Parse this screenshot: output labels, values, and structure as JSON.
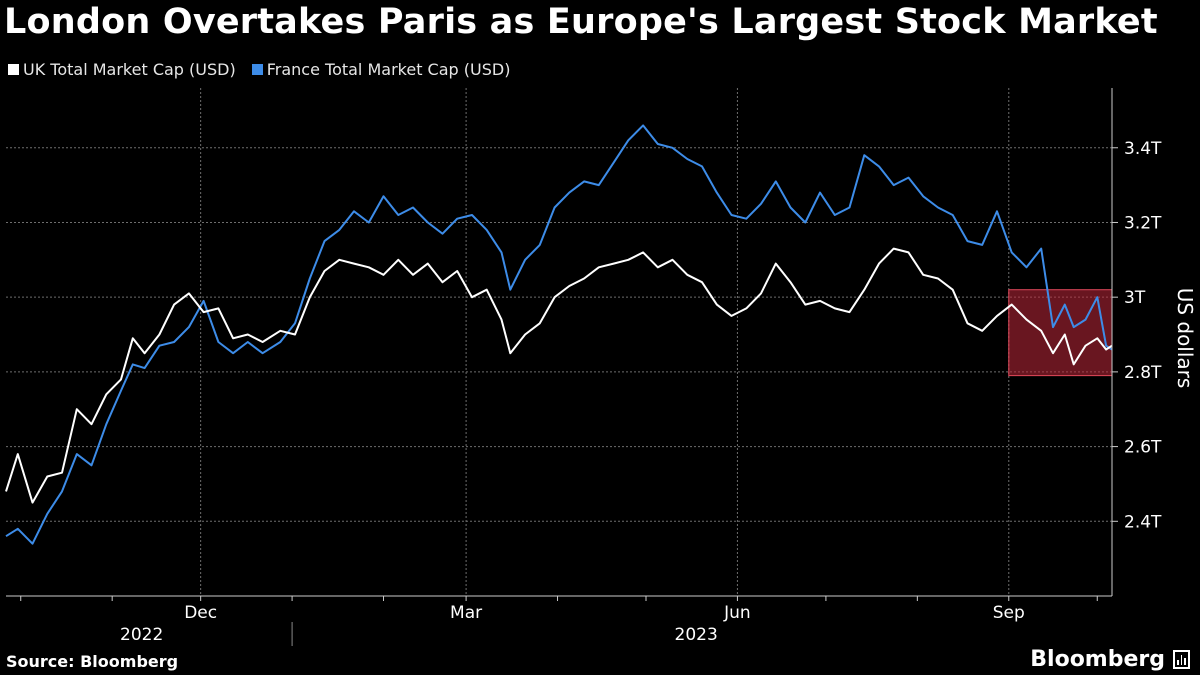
{
  "title": "London Overtakes Paris as Europe's Largest Stock Market",
  "source": "Source: Bloomberg",
  "brand": "Bloomberg",
  "colors": {
    "uk": "#ffffff",
    "france": "#3d8ce8",
    "highlight": "#c0283a"
  },
  "chart_data": {
    "type": "line",
    "title": "London Overtakes Paris as Europe's Largest Stock Market",
    "ylabel": "US dollars",
    "ylim": [
      2.2,
      3.56
    ],
    "y_ticks": [
      "2.4T",
      "2.6T",
      "2.8T",
      "3T",
      "3.2T",
      "3.4T"
    ],
    "y_tick_values": [
      2.4,
      2.6,
      2.8,
      3.0,
      3.2,
      3.4
    ],
    "x_range": [
      "2022-09-26",
      "2023-10-06"
    ],
    "x_ticks": [
      {
        "label": "Dec",
        "date": "2022-12-01"
      },
      {
        "label": "Mar",
        "date": "2023-03-01"
      },
      {
        "label": "Jun",
        "date": "2023-06-01"
      },
      {
        "label": "Sep",
        "date": "2023-09-01"
      }
    ],
    "minor_ticks": [
      "2022-10-01",
      "2022-11-01",
      "2022-12-01",
      "2023-01-01",
      "2023-02-01",
      "2023-03-01",
      "2023-04-01",
      "2023-05-01",
      "2023-06-01",
      "2023-07-01",
      "2023-08-01",
      "2023-09-01",
      "2023-10-01"
    ],
    "year_labels": [
      {
        "label": "2022",
        "date": "2022-11-11"
      },
      {
        "label": "2023",
        "date": "2023-05-18"
      }
    ],
    "year_divider": "2023-01-01",
    "grid": true,
    "legend_position": "top-left",
    "highlight": {
      "x_start": "2023-09-01",
      "x_end": "2023-10-06",
      "y_start": 2.79,
      "y_end": 3.02
    },
    "series": [
      {
        "name": "UK Total Market Cap (USD)",
        "color": "#ffffff",
        "points": [
          [
            "2022-09-26",
            2.48
          ],
          [
            "2022-09-30",
            2.58
          ],
          [
            "2022-10-05",
            2.45
          ],
          [
            "2022-10-10",
            2.52
          ],
          [
            "2022-10-15",
            2.53
          ],
          [
            "2022-10-20",
            2.7
          ],
          [
            "2022-10-25",
            2.66
          ],
          [
            "2022-10-30",
            2.74
          ],
          [
            "2022-11-04",
            2.78
          ],
          [
            "2022-11-08",
            2.89
          ],
          [
            "2022-11-12",
            2.85
          ],
          [
            "2022-11-17",
            2.9
          ],
          [
            "2022-11-22",
            2.98
          ],
          [
            "2022-11-27",
            3.01
          ],
          [
            "2022-12-02",
            2.96
          ],
          [
            "2022-12-07",
            2.97
          ],
          [
            "2022-12-12",
            2.89
          ],
          [
            "2022-12-17",
            2.9
          ],
          [
            "2022-12-22",
            2.88
          ],
          [
            "2022-12-28",
            2.91
          ],
          [
            "2023-01-02",
            2.9
          ],
          [
            "2023-01-07",
            3.0
          ],
          [
            "2023-01-12",
            3.07
          ],
          [
            "2023-01-17",
            3.1
          ],
          [
            "2023-01-22",
            3.09
          ],
          [
            "2023-01-27",
            3.08
          ],
          [
            "2023-02-01",
            3.06
          ],
          [
            "2023-02-06",
            3.1
          ],
          [
            "2023-02-11",
            3.06
          ],
          [
            "2023-02-16",
            3.09
          ],
          [
            "2023-02-21",
            3.04
          ],
          [
            "2023-02-26",
            3.07
          ],
          [
            "2023-03-03",
            3.0
          ],
          [
            "2023-03-08",
            3.02
          ],
          [
            "2023-03-13",
            2.94
          ],
          [
            "2023-03-16",
            2.85
          ],
          [
            "2023-03-21",
            2.9
          ],
          [
            "2023-03-26",
            2.93
          ],
          [
            "2023-03-31",
            3.0
          ],
          [
            "2023-04-05",
            3.03
          ],
          [
            "2023-04-10",
            3.05
          ],
          [
            "2023-04-15",
            3.08
          ],
          [
            "2023-04-20",
            3.09
          ],
          [
            "2023-04-25",
            3.1
          ],
          [
            "2023-04-30",
            3.12
          ],
          [
            "2023-05-05",
            3.08
          ],
          [
            "2023-05-10",
            3.1
          ],
          [
            "2023-05-15",
            3.06
          ],
          [
            "2023-05-20",
            3.04
          ],
          [
            "2023-05-25",
            2.98
          ],
          [
            "2023-05-30",
            2.95
          ],
          [
            "2023-06-04",
            2.97
          ],
          [
            "2023-06-09",
            3.01
          ],
          [
            "2023-06-14",
            3.09
          ],
          [
            "2023-06-19",
            3.04
          ],
          [
            "2023-06-24",
            2.98
          ],
          [
            "2023-06-29",
            2.99
          ],
          [
            "2023-07-04",
            2.97
          ],
          [
            "2023-07-09",
            2.96
          ],
          [
            "2023-07-14",
            3.02
          ],
          [
            "2023-07-19",
            3.09
          ],
          [
            "2023-07-24",
            3.13
          ],
          [
            "2023-07-29",
            3.12
          ],
          [
            "2023-08-03",
            3.06
          ],
          [
            "2023-08-08",
            3.05
          ],
          [
            "2023-08-13",
            3.02
          ],
          [
            "2023-08-18",
            2.93
          ],
          [
            "2023-08-23",
            2.91
          ],
          [
            "2023-08-28",
            2.95
          ],
          [
            "2023-09-02",
            2.98
          ],
          [
            "2023-09-07",
            2.94
          ],
          [
            "2023-09-12",
            2.91
          ],
          [
            "2023-09-16",
            2.85
          ],
          [
            "2023-09-20",
            2.9
          ],
          [
            "2023-09-23",
            2.82
          ],
          [
            "2023-09-27",
            2.87
          ],
          [
            "2023-10-01",
            2.89
          ],
          [
            "2023-10-04",
            2.86
          ],
          [
            "2023-10-06",
            2.87
          ]
        ]
      },
      {
        "name": "France Total Market Cap (USD)",
        "color": "#3d8ce8",
        "points": [
          [
            "2022-09-26",
            2.36
          ],
          [
            "2022-09-30",
            2.38
          ],
          [
            "2022-10-05",
            2.34
          ],
          [
            "2022-10-10",
            2.42
          ],
          [
            "2022-10-15",
            2.48
          ],
          [
            "2022-10-20",
            2.58
          ],
          [
            "2022-10-25",
            2.55
          ],
          [
            "2022-10-30",
            2.66
          ],
          [
            "2022-11-04",
            2.75
          ],
          [
            "2022-11-08",
            2.82
          ],
          [
            "2022-11-12",
            2.81
          ],
          [
            "2022-11-17",
            2.87
          ],
          [
            "2022-11-22",
            2.88
          ],
          [
            "2022-11-27",
            2.92
          ],
          [
            "2022-12-02",
            2.99
          ],
          [
            "2022-12-07",
            2.88
          ],
          [
            "2022-12-12",
            2.85
          ],
          [
            "2022-12-17",
            2.88
          ],
          [
            "2022-12-22",
            2.85
          ],
          [
            "2022-12-28",
            2.88
          ],
          [
            "2023-01-02",
            2.93
          ],
          [
            "2023-01-07",
            3.05
          ],
          [
            "2023-01-12",
            3.15
          ],
          [
            "2023-01-17",
            3.18
          ],
          [
            "2023-01-22",
            3.23
          ],
          [
            "2023-01-27",
            3.2
          ],
          [
            "2023-02-01",
            3.27
          ],
          [
            "2023-02-06",
            3.22
          ],
          [
            "2023-02-11",
            3.24
          ],
          [
            "2023-02-16",
            3.2
          ],
          [
            "2023-02-21",
            3.17
          ],
          [
            "2023-02-26",
            3.21
          ],
          [
            "2023-03-03",
            3.22
          ],
          [
            "2023-03-08",
            3.18
          ],
          [
            "2023-03-13",
            3.12
          ],
          [
            "2023-03-16",
            3.02
          ],
          [
            "2023-03-21",
            3.1
          ],
          [
            "2023-03-26",
            3.14
          ],
          [
            "2023-03-31",
            3.24
          ],
          [
            "2023-04-05",
            3.28
          ],
          [
            "2023-04-10",
            3.31
          ],
          [
            "2023-04-15",
            3.3
          ],
          [
            "2023-04-20",
            3.36
          ],
          [
            "2023-04-25",
            3.42
          ],
          [
            "2023-04-30",
            3.46
          ],
          [
            "2023-05-05",
            3.41
          ],
          [
            "2023-05-10",
            3.4
          ],
          [
            "2023-05-15",
            3.37
          ],
          [
            "2023-05-20",
            3.35
          ],
          [
            "2023-05-25",
            3.28
          ],
          [
            "2023-05-30",
            3.22
          ],
          [
            "2023-06-04",
            3.21
          ],
          [
            "2023-06-09",
            3.25
          ],
          [
            "2023-06-14",
            3.31
          ],
          [
            "2023-06-19",
            3.24
          ],
          [
            "2023-06-24",
            3.2
          ],
          [
            "2023-06-29",
            3.28
          ],
          [
            "2023-07-04",
            3.22
          ],
          [
            "2023-07-09",
            3.24
          ],
          [
            "2023-07-14",
            3.38
          ],
          [
            "2023-07-19",
            3.35
          ],
          [
            "2023-07-24",
            3.3
          ],
          [
            "2023-07-29",
            3.32
          ],
          [
            "2023-08-03",
            3.27
          ],
          [
            "2023-08-08",
            3.24
          ],
          [
            "2023-08-13",
            3.22
          ],
          [
            "2023-08-18",
            3.15
          ],
          [
            "2023-08-23",
            3.14
          ],
          [
            "2023-08-28",
            3.23
          ],
          [
            "2023-09-02",
            3.12
          ],
          [
            "2023-09-07",
            3.08
          ],
          [
            "2023-09-12",
            3.13
          ],
          [
            "2023-09-16",
            2.92
          ],
          [
            "2023-09-20",
            2.98
          ],
          [
            "2023-09-23",
            2.92
          ],
          [
            "2023-09-27",
            2.94
          ],
          [
            "2023-10-01",
            3.0
          ],
          [
            "2023-10-04",
            2.87
          ],
          [
            "2023-10-06",
            2.86
          ]
        ]
      }
    ]
  }
}
